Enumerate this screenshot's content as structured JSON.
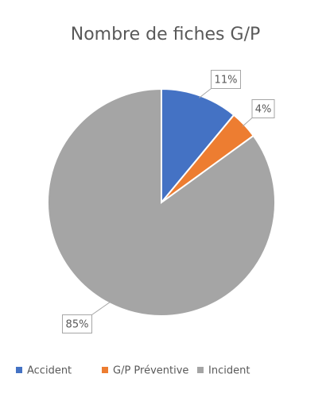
{
  "chart_data": {
    "type": "pie",
    "title": "Nombre de fiches G/P",
    "categories": [
      "Accident",
      "G/P Préventive",
      "Incident"
    ],
    "values": [
      11,
      4,
      85
    ],
    "value_labels": [
      "11%",
      "4%",
      "85%"
    ],
    "colors": [
      "#4472c4",
      "#ed7d31",
      "#a5a5a5"
    ],
    "legend": "bottom"
  }
}
